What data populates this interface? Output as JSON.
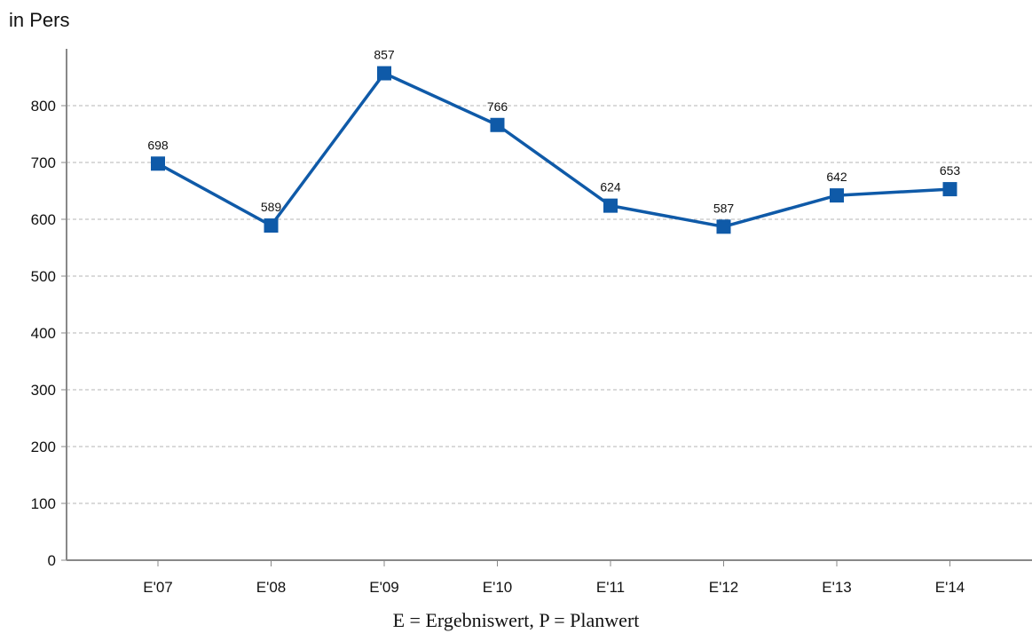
{
  "chart_data": {
    "type": "line",
    "unit_label": "in Pers",
    "categories": [
      "E'07",
      "E'08",
      "E'09",
      "E'10",
      "E'11",
      "E'12",
      "E'13",
      "E'14"
    ],
    "series": [
      {
        "values": [
          698,
          589,
          857,
          766,
          624,
          587,
          642,
          653
        ],
        "color": "#0f5aa8"
      }
    ],
    "data_labels": [
      "698",
      "589",
      "857",
      "766",
      "624",
      "587",
      "642",
      "653"
    ],
    "y_ticks": [
      "0",
      "100",
      "200",
      "300",
      "400",
      "500",
      "600",
      "700",
      "800"
    ],
    "ylim": [
      0,
      900
    ],
    "grid": true,
    "footnote": "E = Ergebniswert, P = Planwert"
  }
}
